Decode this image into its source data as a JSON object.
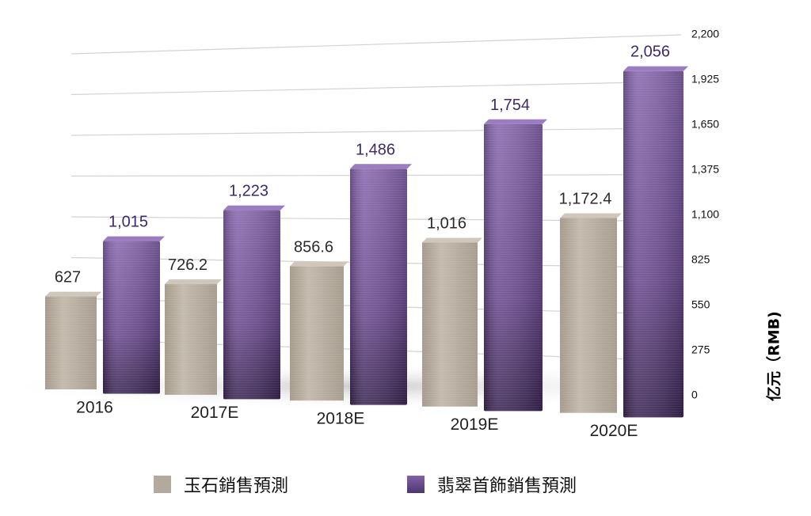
{
  "chart_data": {
    "type": "bar",
    "categories": [
      "2016",
      "2017E",
      "2018E",
      "2019E",
      "2020E"
    ],
    "series": [
      {
        "name": "玉石銷售預測",
        "values": [
          627,
          726.2,
          856.6,
          1016,
          1172.4
        ],
        "value_labels": [
          "627",
          "726.2",
          "856.6",
          "1,016",
          "1,172.4"
        ]
      },
      {
        "name": "翡翠首飾銷售預測",
        "values": [
          1015,
          1223,
          1486,
          1754,
          2056
        ],
        "value_labels": [
          "1,015",
          "1,223",
          "1,486",
          "1,754",
          "2,056"
        ]
      }
    ],
    "ylabel": "亿元（RMB)",
    "yticks": [
      "0",
      "275",
      "550",
      "825",
      "1,100",
      "1,375",
      "1,650",
      "1,925",
      "2,200"
    ],
    "ylim": [
      0,
      2200
    ],
    "y_axis_position": "right",
    "grid": true,
    "legend_position": "bottom",
    "colors": {
      "jade": "#b7ada0",
      "jadeite": "#6b4b8c",
      "jade_label": "#2a2a2a",
      "jadeite_label": "#3d2a6a"
    }
  }
}
